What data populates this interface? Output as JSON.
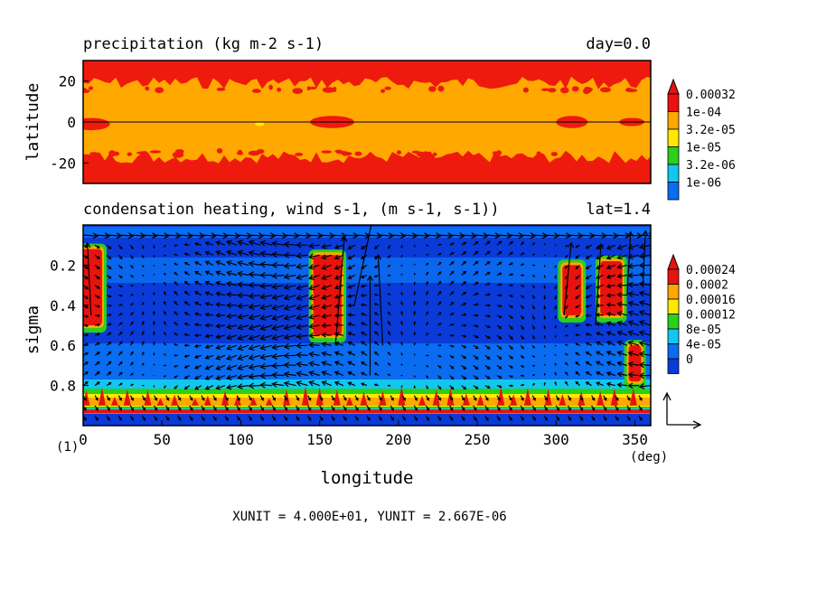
{
  "chart_data": [
    {
      "type": "heatmap",
      "title": "precipitation (kg m-2 s-1)",
      "title_right": "day=0.0",
      "ylabel": "latitude",
      "xlim": [
        0,
        360
      ],
      "ylim": [
        -30,
        30
      ],
      "yticks": [
        "20",
        "0",
        "-20"
      ],
      "ytick_values": [
        20,
        0,
        -20
      ],
      "zero_line": 0,
      "colorbar": {
        "labels": [
          "0.00032",
          "1e-04",
          "3.2e-05",
          "1e-05",
          "3.2e-06",
          "1e-06"
        ],
        "colors": [
          "#e8120e",
          "#ffa800",
          "#ffe900",
          "#2ad01c",
          "#12c6f0",
          "#0a6cf0"
        ]
      },
      "patches": [
        {
          "kind": "band",
          "lat_from": 20,
          "lat_to": 30,
          "color": "#ee1a0e"
        },
        {
          "kind": "band",
          "lat_from": -30,
          "lat_to": -18,
          "color": "#ee1a0e"
        },
        {
          "kind": "blob",
          "lon": 5,
          "lat": -1,
          "lon_w": 12,
          "lat_h": 3,
          "color": "#ee1a0e"
        },
        {
          "kind": "blob",
          "lon": 158,
          "lat": 0,
          "lon_w": 14,
          "lat_h": 3,
          "color": "#ee1a0e"
        },
        {
          "kind": "blob",
          "lon": 310,
          "lat": 0,
          "lon_w": 10,
          "lat_h": 3,
          "color": "#ee1a0e"
        },
        {
          "kind": "blob",
          "lon": 348,
          "lat": 0,
          "lon_w": 8,
          "lat_h": 2,
          "color": "#ee1a0e"
        },
        {
          "kind": "blob",
          "lon": 112,
          "lat": -1,
          "lon_w": 3,
          "lat_h": 1,
          "color": "#ffe900"
        }
      ]
    },
    {
      "type": "heatmap",
      "title": "condensation heating, wind (s-1, (m s-1, s-1))",
      "title_visible": "condensation heating, wind  s-1, (m s-1, s-1))",
      "title_right": "lat=1.4",
      "xlabel": "longitude",
      "x_unit": "(deg)",
      "ylabel": "sigma",
      "xlim": [
        0,
        360
      ],
      "ylim": [
        1.0,
        0.0
      ],
      "xticks": [
        "0",
        "50",
        "100",
        "150",
        "200",
        "250",
        "300",
        "350"
      ],
      "xtick_values": [
        0,
        50,
        100,
        150,
        200,
        250,
        300,
        350
      ],
      "yticks": [
        "0.2",
        "0.4",
        "0.6",
        "0.8"
      ],
      "ytick_values": [
        0.2,
        0.4,
        0.6,
        0.8
      ],
      "colorbar": {
        "labels": [
          "0.00024",
          "0.0002",
          "0.00016",
          "0.00012",
          "8e-05",
          "4e-05",
          "0"
        ],
        "colors": [
          "#e8120e",
          "#ffa800",
          "#ffe900",
          "#2ad01c",
          "#12c6f0",
          "#0a6cf0",
          "#0a3bd8"
        ]
      },
      "heating_columns": [
        {
          "lon": 5,
          "sig_top": 0.12,
          "sig_bot": 0.5,
          "w": 14,
          "color": "#e8120e"
        },
        {
          "lon": 155,
          "sig_top": 0.15,
          "sig_bot": 0.55,
          "w": 18,
          "color": "#e8120e"
        },
        {
          "lon": 310,
          "sig_top": 0.2,
          "sig_bot": 0.45,
          "w": 12,
          "color": "#e8120e"
        },
        {
          "lon": 335,
          "sig_top": 0.18,
          "sig_bot": 0.45,
          "w": 14,
          "color": "#e8120e"
        },
        {
          "lon": 350,
          "sig_top": 0.6,
          "sig_bot": 0.78,
          "w": 8,
          "color": "#e8120e"
        }
      ],
      "wind_unit_label": "XUNIT = 4.000E+01, YUNIT = 2.667E-06",
      "frame_label": "(1)"
    }
  ]
}
